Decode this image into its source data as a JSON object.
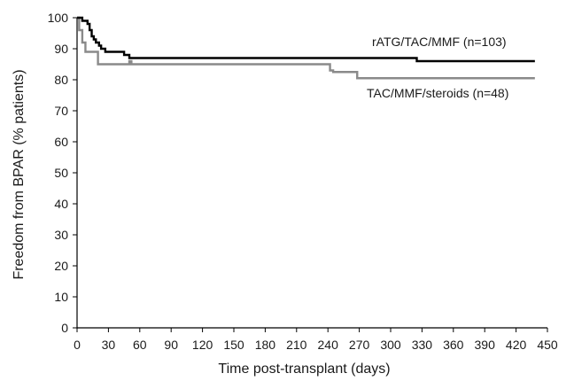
{
  "chart_data": {
    "type": "line",
    "step": true,
    "title": "",
    "xlabel": "Time post-transplant (days)",
    "ylabel": "Freedom from BPAR (% patients)",
    "xlim": [
      0,
      450
    ],
    "ylim": [
      0,
      100
    ],
    "x_ticks": [
      0,
      30,
      60,
      90,
      120,
      150,
      180,
      210,
      240,
      270,
      300,
      330,
      360,
      390,
      420,
      450
    ],
    "y_ticks": [
      0,
      10,
      20,
      30,
      40,
      50,
      60,
      70,
      80,
      90,
      100
    ],
    "grid": false,
    "legend": "inline labels",
    "series": [
      {
        "name": "rATG/TAC/MMF (n=103)",
        "color": "#000000",
        "points": [
          [
            0,
            100
          ],
          [
            5,
            100
          ],
          [
            5,
            99
          ],
          [
            10,
            99
          ],
          [
            10,
            98
          ],
          [
            12,
            98
          ],
          [
            12,
            96
          ],
          [
            14,
            96
          ],
          [
            14,
            94
          ],
          [
            16,
            94
          ],
          [
            16,
            93
          ],
          [
            18,
            93
          ],
          [
            18,
            92
          ],
          [
            21,
            92
          ],
          [
            21,
            91
          ],
          [
            23,
            91
          ],
          [
            23,
            90
          ],
          [
            27,
            90
          ],
          [
            27,
            89
          ],
          [
            45,
            89
          ],
          [
            45,
            88
          ],
          [
            50,
            88
          ],
          [
            50,
            87
          ],
          [
            325,
            87
          ],
          [
            325,
            86
          ],
          [
            438,
            86
          ]
        ]
      },
      {
        "name": "TAC/MMF/steroids (n=48)",
        "color": "#8a8a8a",
        "points": [
          [
            0,
            100
          ],
          [
            2,
            100
          ],
          [
            2,
            96
          ],
          [
            5,
            96
          ],
          [
            5,
            92
          ],
          [
            8,
            92
          ],
          [
            8,
            89
          ],
          [
            20,
            89
          ],
          [
            20,
            85
          ],
          [
            50,
            85
          ],
          [
            50,
            86
          ],
          [
            52,
            86
          ],
          [
            52,
            85
          ],
          [
            242,
            85
          ],
          [
            242,
            83
          ],
          [
            245,
            83
          ],
          [
            245,
            82.5
          ],
          [
            268,
            82.5
          ],
          [
            268,
            80.5
          ],
          [
            438,
            80.5
          ]
        ]
      }
    ]
  }
}
